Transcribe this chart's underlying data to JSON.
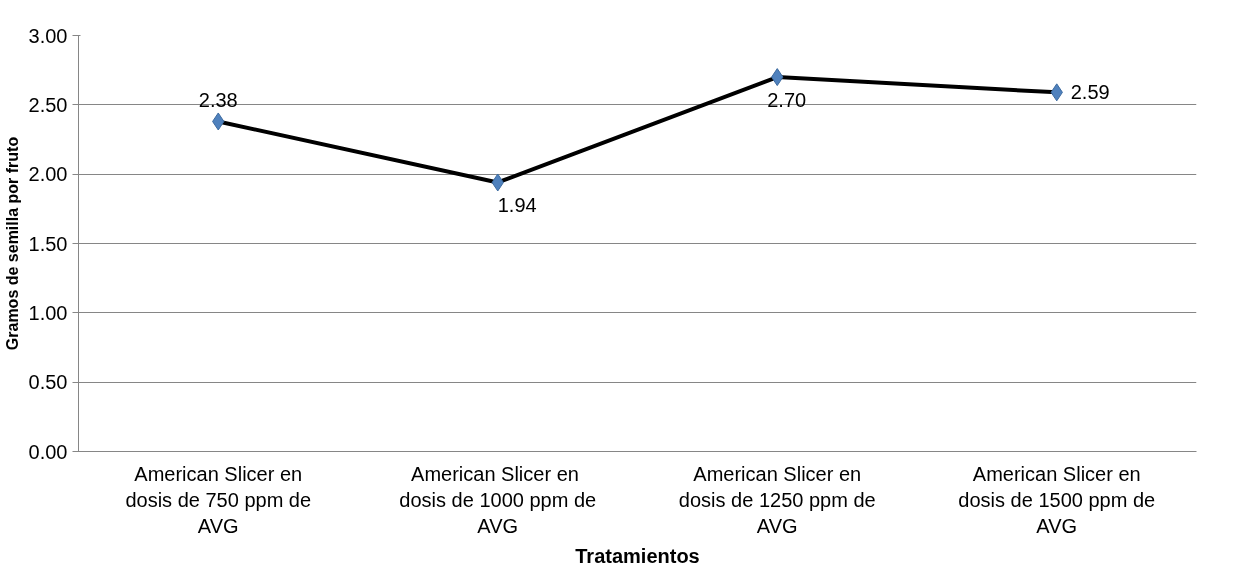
{
  "chart_data": {
    "type": "line",
    "xlabel": "Tratamientos",
    "ylabel": "Gramos de semilla por fruto",
    "categories": [
      "American Slicer en\ndosis de 750 ppm de\nAVG",
      "American Slicer  en\ndosis de 1000 ppm de\nAVG",
      "American Slicer en\ndosis de 1250 ppm de\nAVG",
      "American Slicer en\ndosis de 1500 ppm de\nAVG"
    ],
    "series": [
      {
        "color": "#000000",
        "values": [
          2.38,
          1.94,
          2.7,
          2.59
        ],
        "value_labels": [
          "2.38",
          "1.94",
          "2.70",
          "2.59"
        ]
      }
    ],
    "ylim": [
      0,
      3
    ],
    "yticks": [
      {
        "value": 0,
        "label": "0.00"
      },
      {
        "value": 0.5,
        "label": "0.50"
      },
      {
        "value": 1,
        "label": "1.00"
      },
      {
        "value": 1.5,
        "label": "1.50"
      },
      {
        "value": 2,
        "label": "2.00"
      },
      {
        "value": 2.5,
        "label": "2.50"
      },
      {
        "value": 3,
        "label": "3.00"
      }
    ],
    "grid": "y",
    "marker": "diamond",
    "line_style": "solid"
  }
}
